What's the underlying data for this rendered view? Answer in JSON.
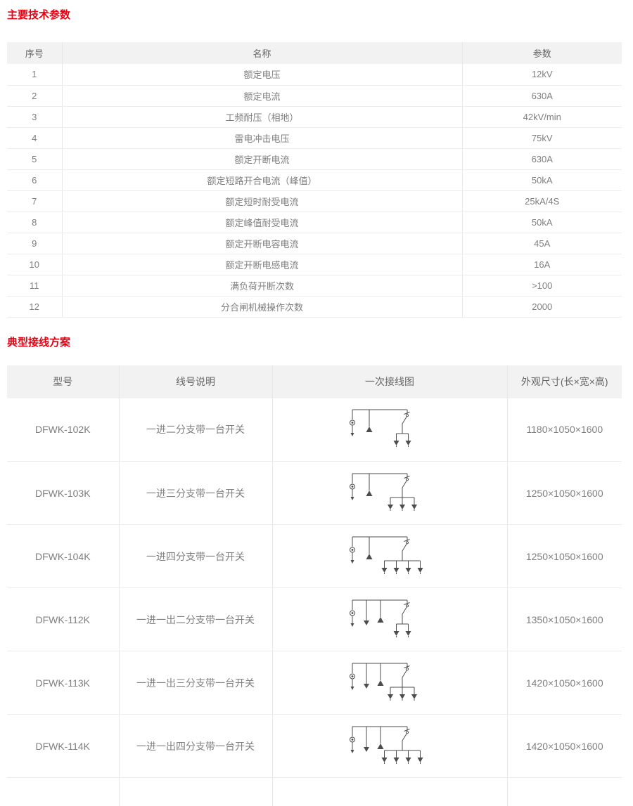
{
  "sections": {
    "params_title": "主要技术参数",
    "schemes_title": "典型接线方案"
  },
  "params_table": {
    "headers": [
      "序号",
      "名称",
      "参数"
    ],
    "rows": [
      {
        "no": "1",
        "name": "额定电压",
        "value": "12kV"
      },
      {
        "no": "2",
        "name": "额定电流",
        "value": "630A"
      },
      {
        "no": "3",
        "name": "工频耐压（相地）",
        "value": "42kV/min"
      },
      {
        "no": "4",
        "name": "雷电冲击电压",
        "value": "75kV"
      },
      {
        "no": "5",
        "name": "额定开断电流",
        "value": "630A"
      },
      {
        "no": "6",
        "name": "额定短路开合电流（峰值）",
        "value": "50kA"
      },
      {
        "no": "7",
        "name": "额定短时耐受电流",
        "value": "25kA/4S"
      },
      {
        "no": "8",
        "name": "额定峰值耐受电流",
        "value": "50kA"
      },
      {
        "no": "9",
        "name": "额定开断电容电流",
        "value": "45A"
      },
      {
        "no": "10",
        "name": "额定开断电感电流",
        "value": "16A"
      },
      {
        "no": "11",
        "name": "满负荷开断次数",
        "value": ">100"
      },
      {
        "no": "12",
        "name": "分合闸机械操作次数",
        "value": "2000"
      }
    ]
  },
  "schemes_table": {
    "headers": [
      "型号",
      "线号说明",
      "一次接线图",
      "外观尺寸(长×宽×高)"
    ],
    "rows": [
      {
        "model": "DFWK-102K",
        "desc": "一进二分支带一台开关",
        "dims": "1180×1050×1600",
        "diagram": {
          "inputs": 1,
          "outputs": 0,
          "branches": 2
        }
      },
      {
        "model": "DFWK-103K",
        "desc": "一进三分支带一台开关",
        "dims": "1250×1050×1600",
        "diagram": {
          "inputs": 1,
          "outputs": 0,
          "branches": 3
        }
      },
      {
        "model": "DFWK-104K",
        "desc": "一进四分支带一台开关",
        "dims": "1250×1050×1600",
        "diagram": {
          "inputs": 1,
          "outputs": 0,
          "branches": 4
        }
      },
      {
        "model": "DFWK-112K",
        "desc": "一进一出二分支带一台开关",
        "dims": "1350×1050×1600",
        "diagram": {
          "inputs": 1,
          "outputs": 1,
          "branches": 2
        }
      },
      {
        "model": "DFWK-113K",
        "desc": "一进一出三分支带一台开关",
        "dims": "1420×1050×1600",
        "diagram": {
          "inputs": 1,
          "outputs": 1,
          "branches": 3
        }
      },
      {
        "model": "DFWK-114K",
        "desc": "一进一出四分支带一台开关",
        "dims": "1420×1050×1600",
        "diagram": {
          "inputs": 1,
          "outputs": 1,
          "branches": 4
        }
      }
    ]
  },
  "colors": {
    "accent_red": "#e60012",
    "header_bg": "#f2f2f2",
    "row_border": "#ececec",
    "body_text": "#7f7f7f"
  }
}
